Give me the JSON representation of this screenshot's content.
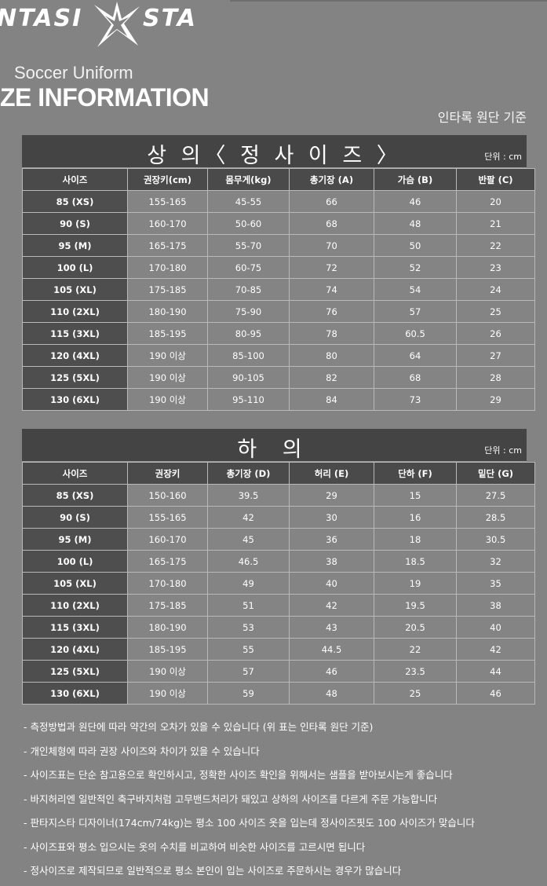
{
  "brand": {
    "left": "NTASI",
    "right": "STA"
  },
  "subtitle": "Soccer Uniform",
  "heading": "ZE INFORMATION",
  "basis": "인타록 원단 기준",
  "top": {
    "title": "상 의〈 정 사 이 즈 〉",
    "unit": "단위 : cm",
    "headers": [
      "사이즈",
      "권장키(cm)",
      "몸무게(kg)",
      "총기장 (A)",
      "가슴 (B)",
      "반팔 (C)"
    ],
    "rows": [
      [
        "85 (XS)",
        "155-165",
        "45-55",
        "66",
        "46",
        "20"
      ],
      [
        "90 (S)",
        "160-170",
        "50-60",
        "68",
        "48",
        "21"
      ],
      [
        "95 (M)",
        "165-175",
        "55-70",
        "70",
        "50",
        "22"
      ],
      [
        "100 (L)",
        "170-180",
        "60-75",
        "72",
        "52",
        "23"
      ],
      [
        "105 (XL)",
        "175-185",
        "70-85",
        "74",
        "54",
        "24"
      ],
      [
        "110 (2XL)",
        "180-190",
        "75-90",
        "76",
        "57",
        "25"
      ],
      [
        "115 (3XL)",
        "185-195",
        "80-95",
        "78",
        "60.5",
        "26"
      ],
      [
        "120 (4XL)",
        "190 이상",
        "85-100",
        "80",
        "64",
        "27"
      ],
      [
        "125 (5XL)",
        "190 이상",
        "90-105",
        "82",
        "68",
        "28"
      ],
      [
        "130 (6XL)",
        "190 이상",
        "95-110",
        "84",
        "73",
        "29"
      ]
    ]
  },
  "bottom": {
    "title": "하 의",
    "unit": "단위 : cm",
    "headers": [
      "사이즈",
      "권장키",
      "총기장 (D)",
      "허리 (E)",
      "단하 (F)",
      "밑단 (G)"
    ],
    "rows": [
      [
        "85 (XS)",
        "150-160",
        "39.5",
        "29",
        "15",
        "27.5"
      ],
      [
        "90 (S)",
        "155-165",
        "42",
        "30",
        "16",
        "28.5"
      ],
      [
        "95 (M)",
        "160-170",
        "45",
        "36",
        "18",
        "30.5"
      ],
      [
        "100 (L)",
        "165-175",
        "46.5",
        "38",
        "18.5",
        "32"
      ],
      [
        "105 (XL)",
        "170-180",
        "49",
        "40",
        "19",
        "35"
      ],
      [
        "110 (2XL)",
        "175-185",
        "51",
        "42",
        "19.5",
        "38"
      ],
      [
        "115 (3XL)",
        "180-190",
        "53",
        "43",
        "20.5",
        "40"
      ],
      [
        "120 (4XL)",
        "185-195",
        "55",
        "44.5",
        "22",
        "42"
      ],
      [
        "125 (5XL)",
        "190 이상",
        "57",
        "46",
        "23.5",
        "44"
      ],
      [
        "130 (6XL)",
        "190 이상",
        "59",
        "48",
        "25",
        "46"
      ]
    ]
  },
  "notes": [
    "- 측정방법과 원단에 따라 약간의 오차가 있을 수 있습니다 (위 표는 인타록 원단 기준)",
    "- 개인체형에 따라 권장 사이즈와 차이가 있을 수 있습니다",
    "- 사이즈표는 단순 참고용으로 확인하시고, 정확한 사이즈 확인을 위해서는 샘플을 받아보시는게 좋습니다",
    "- 바지허리엔 일반적인 축구바지처럼 고무밴드처리가 돼있고 상하의 사이즈를 다르게 주문 가능합니다",
    "- 판타지스타 디자이너(174cm/74kg)는 평소 100 사이즈 옷을 입는데 정사이즈핏도 100 사이즈가 맞습니다",
    "- 사이즈표와 평소 입으시는 옷의 수치를 비교하여 비슷한 사이즈를 고르시면 됩니다",
    "- 정사이즈로 제작되므로 일반적으로 평소 본인이 입는 사이즈로 주문하시는 경우가 많습니다"
  ]
}
